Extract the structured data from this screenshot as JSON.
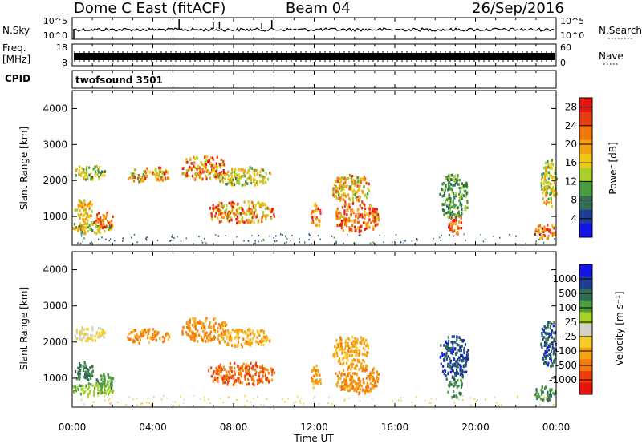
{
  "header": {
    "radar": "Dome C East (fitACF)",
    "beam": "Beam 04",
    "date": "26/Sep/2016"
  },
  "strips": {
    "nsky_label": "N.Sky",
    "nsky_ticks": [
      "10^5",
      "10^0"
    ],
    "nsearch_label": "N.Search",
    "nsearch_ticks": [
      "10^5",
      "10^0"
    ],
    "freq_label_1": "Freq.",
    "freq_label_2": "[MHz]",
    "freq_ticks": [
      "18",
      "8"
    ],
    "nave_label": "Nave",
    "nave_ticks": [
      "60",
      "0"
    ],
    "cpid_label": "CPID",
    "cpid_value": "twofsound 3501"
  },
  "colors": {
    "power_scale": [
      "#1414e6",
      "#1e3c96",
      "#2f6e55",
      "#4a9a3e",
      "#a6cf28",
      "#f0c814",
      "#f5a00f",
      "#f0780a",
      "#e63c0f",
      "#e6140f"
    ],
    "velocity_scale": [
      "#e6140f",
      "#f03c0a",
      "#f5780a",
      "#f5a50f",
      "#f5cd28",
      "#d2d2c8",
      "#a6cf28",
      "#4a9a3e",
      "#2f6e55",
      "#1e3c96",
      "#1414e6"
    ]
  },
  "chart_data": [
    {
      "type": "heatmap",
      "panel": "power",
      "ylabel": "Slant Range [km]",
      "ylim": [
        200,
        4500
      ],
      "yticks": [
        "1000",
        "2000",
        "3000",
        "4000"
      ],
      "colorbar_label": "Power [dB]",
      "colorbar_ticks": [
        "4",
        "8",
        "12",
        "16",
        "20",
        "24",
        "28"
      ],
      "clim": [
        0,
        30
      ],
      "blobs": [
        {
          "t": [
            0.1,
            1.6
          ],
          "r": [
            2050,
            2450
          ],
          "v": [
            8,
            20
          ]
        },
        {
          "t": [
            0.1,
            1.0
          ],
          "r": [
            900,
            1500
          ],
          "v": [
            12,
            24
          ]
        },
        {
          "t": [
            0.0,
            2.0
          ],
          "r": [
            550,
            900
          ],
          "v": [
            8,
            22
          ]
        },
        {
          "t": [
            1.1,
            2.0
          ],
          "r": [
            700,
            1150
          ],
          "v": [
            18,
            30
          ]
        },
        {
          "t": [
            2.7,
            4.8
          ],
          "r": [
            2000,
            2400
          ],
          "v": [
            10,
            28
          ]
        },
        {
          "t": [
            5.4,
            7.6
          ],
          "r": [
            2050,
            2700
          ],
          "v": [
            12,
            30
          ]
        },
        {
          "t": [
            7.2,
            9.8
          ],
          "r": [
            1900,
            2400
          ],
          "v": [
            8,
            20
          ]
        },
        {
          "t": [
            6.7,
            10.0
          ],
          "r": [
            850,
            1450
          ],
          "v": [
            12,
            30
          ]
        },
        {
          "t": [
            11.8,
            12.3
          ],
          "r": [
            750,
            1400
          ],
          "v": [
            16,
            28
          ]
        },
        {
          "t": [
            12.9,
            14.7
          ],
          "r": [
            1400,
            2200
          ],
          "v": [
            10,
            26
          ]
        },
        {
          "t": [
            13.0,
            15.2
          ],
          "r": [
            600,
            1400
          ],
          "v": [
            16,
            30
          ]
        },
        {
          "t": [
            18.6,
            19.3
          ],
          "r": [
            500,
            1100
          ],
          "v": [
            18,
            30
          ]
        },
        {
          "t": [
            18.2,
            19.6
          ],
          "r": [
            1000,
            2200
          ],
          "v": [
            6,
            14
          ]
        },
        {
          "t": [
            22.9,
            24.0
          ],
          "r": [
            400,
            800
          ],
          "v": [
            16,
            30
          ]
        },
        {
          "t": [
            23.2,
            24.0
          ],
          "r": [
            1300,
            2600
          ],
          "v": [
            10,
            22
          ]
        }
      ]
    },
    {
      "type": "heatmap",
      "panel": "velocity",
      "ylabel": "Slant Range [km]",
      "ylim": [
        200,
        4500
      ],
      "yticks": [
        "1000",
        "2000",
        "3000",
        "4000"
      ],
      "colorbar_label": "Velocity [m s⁻¹]",
      "colorbar_ticks": [
        "1000",
        "500",
        "100",
        "25",
        "-25",
        "-100",
        "-500",
        "-1000"
      ],
      "blobs": [
        {
          "t": [
            0.1,
            1.6
          ],
          "r": [
            2050,
            2450
          ],
          "v": [
            -100,
            25
          ]
        },
        {
          "t": [
            0.1,
            1.0
          ],
          "r": [
            900,
            1500
          ],
          "v": [
            100,
            500
          ]
        },
        {
          "t": [
            0.0,
            2.0
          ],
          "r": [
            550,
            900
          ],
          "v": [
            25,
            150
          ]
        },
        {
          "t": [
            1.1,
            2.0
          ],
          "r": [
            700,
            1150
          ],
          "v": [
            50,
            300
          ]
        },
        {
          "t": [
            2.7,
            4.8
          ],
          "r": [
            2000,
            2400
          ],
          "v": [
            -500,
            -60
          ]
        },
        {
          "t": [
            5.4,
            7.6
          ],
          "r": [
            2050,
            2700
          ],
          "v": [
            -500,
            -60
          ]
        },
        {
          "t": [
            7.2,
            9.8
          ],
          "r": [
            1900,
            2400
          ],
          "v": [
            -300,
            -30
          ]
        },
        {
          "t": [
            6.7,
            10.0
          ],
          "r": [
            850,
            1450
          ],
          "v": [
            -700,
            -200
          ]
        },
        {
          "t": [
            11.8,
            12.3
          ],
          "r": [
            750,
            1400
          ],
          "v": [
            -300,
            -80
          ]
        },
        {
          "t": [
            12.9,
            14.7
          ],
          "r": [
            1400,
            2200
          ],
          "v": [
            -300,
            -60
          ]
        },
        {
          "t": [
            13.0,
            15.2
          ],
          "r": [
            600,
            1400
          ],
          "v": [
            -400,
            -100
          ]
        },
        {
          "t": [
            18.6,
            19.3
          ],
          "r": [
            500,
            1100
          ],
          "v": [
            100,
            400
          ]
        },
        {
          "t": [
            18.2,
            19.6
          ],
          "r": [
            1000,
            2200
          ],
          "v": [
            300,
            900
          ]
        },
        {
          "t": [
            22.9,
            24.0
          ],
          "r": [
            400,
            800
          ],
          "v": [
            100,
            400
          ]
        },
        {
          "t": [
            23.2,
            24.0
          ],
          "r": [
            1300,
            2600
          ],
          "v": [
            200,
            900
          ]
        }
      ]
    }
  ],
  "time_axis": {
    "ticks": [
      "00:00",
      "04:00",
      "08:00",
      "12:00",
      "16:00",
      "20:00",
      "00:00"
    ],
    "xlabel": "Time UT",
    "range_hours": [
      0,
      24
    ]
  }
}
